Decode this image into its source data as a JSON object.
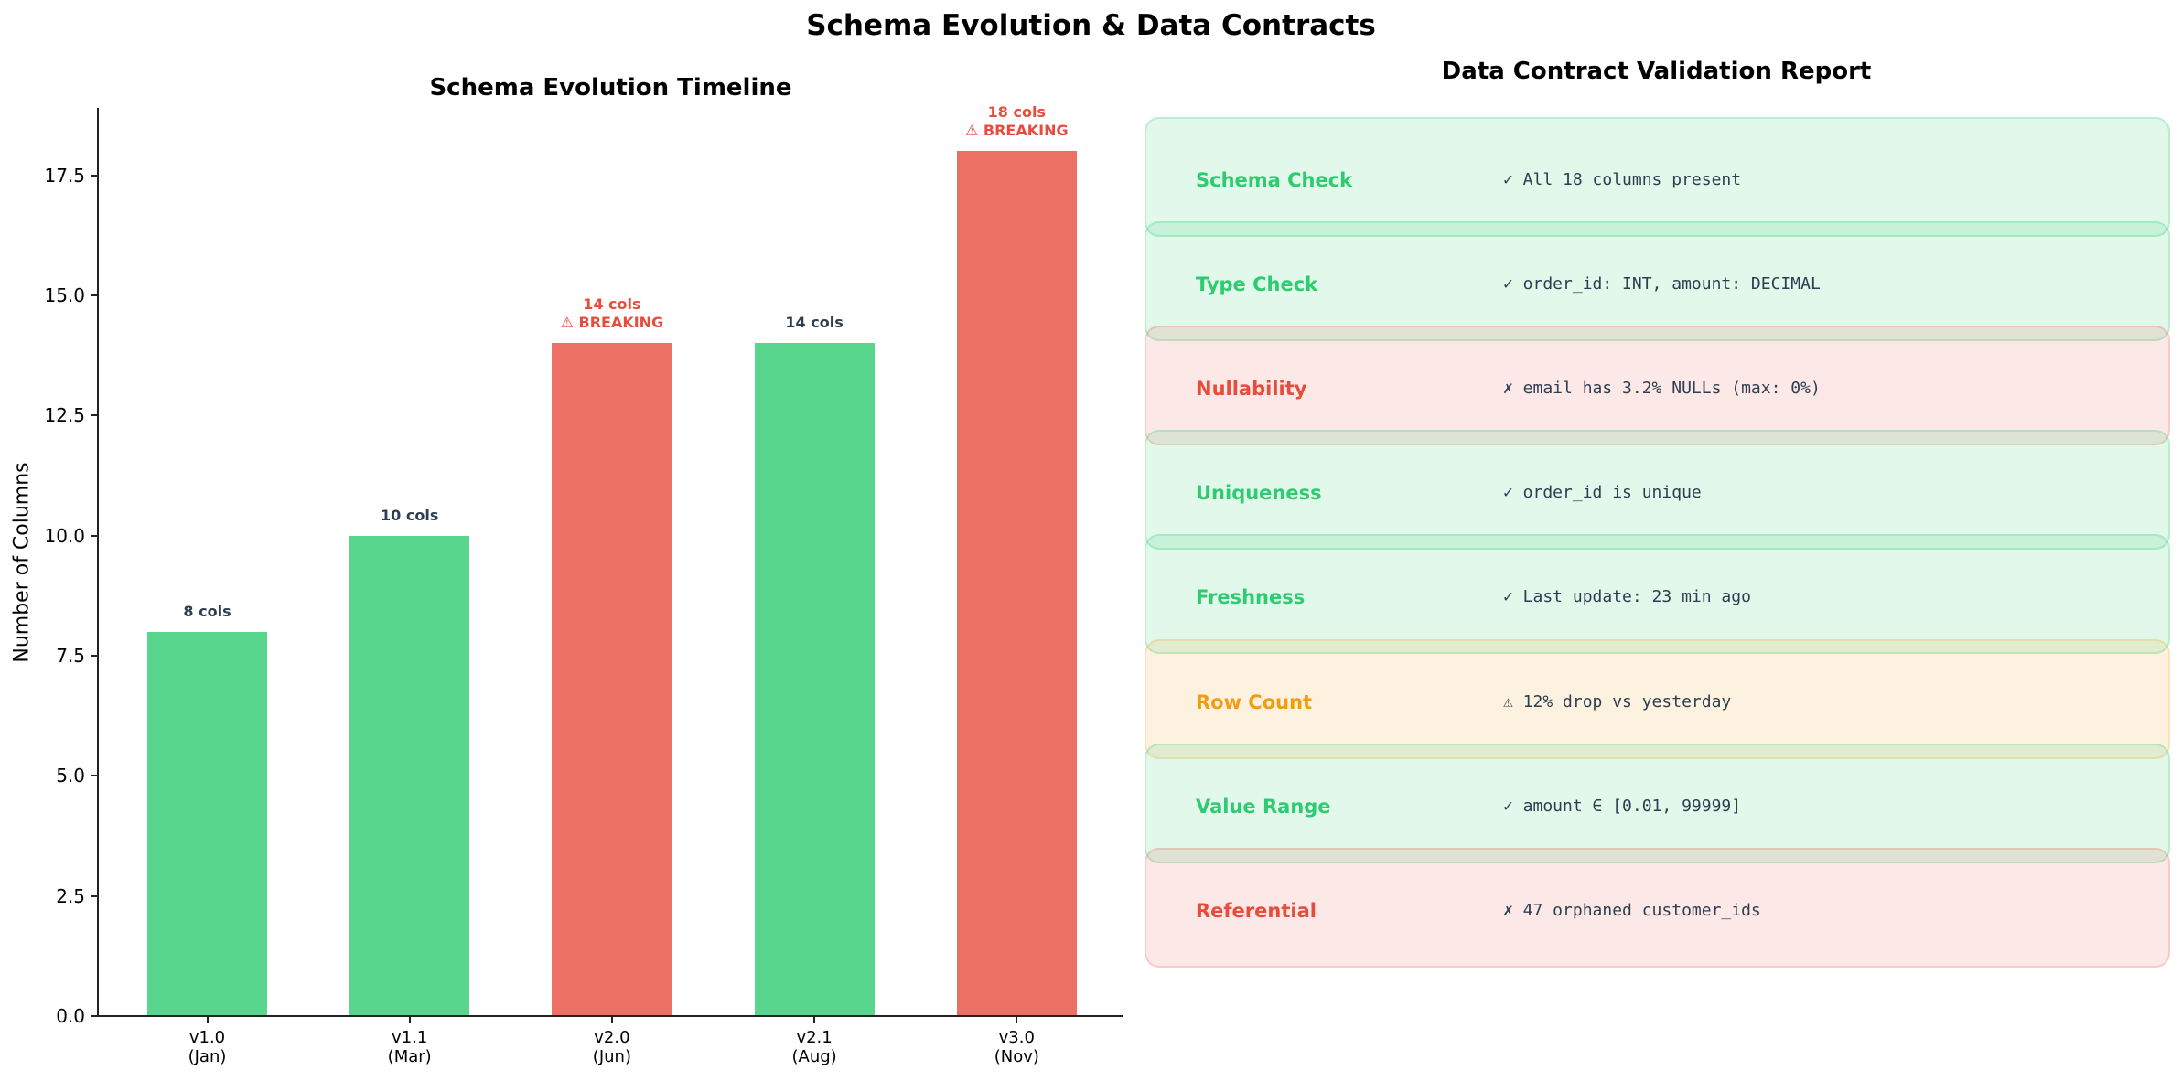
{
  "figure": {
    "title": "Schema Evolution & Data Contracts"
  },
  "chart_data": [
    {
      "type": "bar",
      "title": "Schema Evolution Timeline",
      "xlabel": "",
      "ylabel": "Number of Columns",
      "ylim": [
        0,
        18.9
      ],
      "yticks": [
        "0.0",
        "2.5",
        "5.0",
        "7.5",
        "10.0",
        "12.5",
        "15.0",
        "17.5"
      ],
      "categories": [
        "v1.0\n(Jan)",
        "v1.1\n(Mar)",
        "v2.0\n(Jun)",
        "v2.1\n(Aug)",
        "v3.0\n(Nov)"
      ],
      "category_versions": [
        "v1.0",
        "v1.1",
        "v2.0",
        "v2.1",
        "v3.0"
      ],
      "category_months": [
        "(Jan)",
        "(Mar)",
        "(Jun)",
        "(Aug)",
        "(Nov)"
      ],
      "values": [
        8,
        10,
        14,
        14,
        18
      ],
      "breaking": [
        false,
        false,
        true,
        false,
        true
      ],
      "bar_labels": [
        "8 cols",
        "10 cols",
        "14 cols",
        "14 cols",
        "18 cols"
      ],
      "breaking_label": "⚠ BREAKING",
      "colors": {
        "ok": "#58d68d",
        "breaking": "#ec7063",
        "label_ok": "#2c3e50",
        "label_breaking": "#e74c3c"
      },
      "grid": false,
      "legend": null
    },
    {
      "type": "table",
      "title": "Data Contract Validation Report",
      "rows": [
        {
          "check": "Schema Check",
          "status": "pass",
          "detail": "✓ All 18 columns present"
        },
        {
          "check": "Type Check",
          "status": "pass",
          "detail": "✓ order_id: INT, amount: DECIMAL"
        },
        {
          "check": "Nullability",
          "status": "fail",
          "detail": "✗ email has 3.2% NULLs (max: 0%)"
        },
        {
          "check": "Uniqueness",
          "status": "pass",
          "detail": "✓ order_id is unique"
        },
        {
          "check": "Freshness",
          "status": "pass",
          "detail": "✓ Last update: 23 min ago"
        },
        {
          "check": "Row Count",
          "status": "warn",
          "detail": "⚠ 12% drop vs yesterday"
        },
        {
          "check": "Value Range",
          "status": "pass",
          "detail": "✓ amount ∈ [0.01, 99999]"
        },
        {
          "check": "Referential",
          "status": "fail",
          "detail": "✗ 47 orphaned customer_ids"
        }
      ],
      "status_colors": {
        "pass": {
          "text": "#2ecc71",
          "bg": "rgba(46,204,113,0.14)",
          "border": "rgba(46,204,113,0.22)"
        },
        "fail": {
          "text": "#e74c3c",
          "bg": "rgba(231,76,60,0.13)",
          "border": "rgba(231,76,60,0.18)"
        },
        "warn": {
          "text": "#f39c12",
          "bg": "rgba(243,156,18,0.13)",
          "border": "rgba(243,156,18,0.18)"
        }
      }
    }
  ]
}
